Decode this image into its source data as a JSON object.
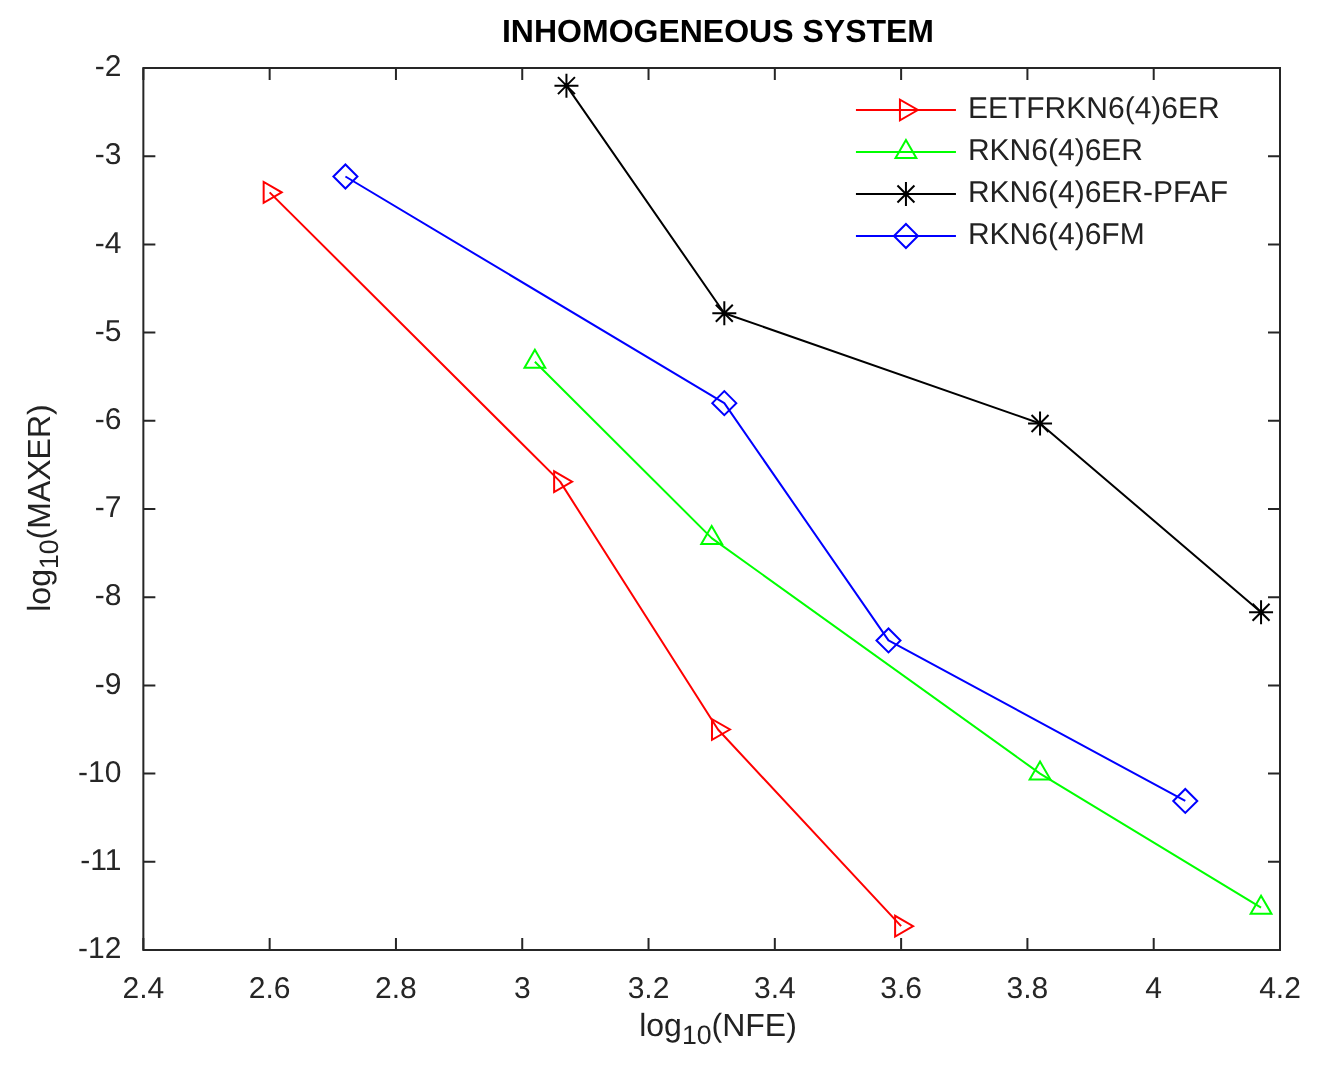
{
  "chart_data": {
    "type": "line",
    "title": "INHOMOGENEOUS SYSTEM",
    "xlabel": "log$_{10}$(NFE)",
    "ylabel": "log$_{10}$(MAXER)",
    "xlim": [
      2.4,
      4.2
    ],
    "xticks": [
      2.4,
      2.6,
      2.8,
      3,
      3.2,
      3.4,
      3.6,
      3.8,
      4,
      4.2
    ],
    "ylim": [
      -12,
      -2
    ],
    "yticks": [
      -12,
      -11,
      -10,
      -9,
      -8,
      -7,
      -6,
      -5,
      -4,
      -3,
      -2
    ],
    "grid": false,
    "legend": "top right",
    "line_style": "solid",
    "series": [
      {
        "name": "EETFRKN6(4)6ER",
        "color": "#ff0000",
        "marker": "triangle-right",
        "x": [
          2.6,
          3.06,
          3.31,
          3.6
        ],
        "values": [
          -3.41,
          -6.69,
          -9.5,
          -11.73
        ]
      },
      {
        "name": "RKN6(4)6ER",
        "color": "#00ff00",
        "marker": "triangle",
        "x": [
          3.02,
          3.3,
          3.82,
          4.17
        ],
        "values": [
          -5.33,
          -7.33,
          -10.0,
          -11.52
        ]
      },
      {
        "name": "RKN6(4)6ER-PFAF",
        "color": "#000000",
        "marker": "cross",
        "x": [
          3.07,
          3.32,
          3.82,
          4.17
        ],
        "values": [
          -2.2,
          -4.78,
          -6.03,
          -8.17
        ]
      },
      {
        "name": "RKN6(4)6FM",
        "color": "#0000ff",
        "marker": "diamond",
        "x": [
          2.72,
          3.32,
          3.58,
          4.05
        ],
        "values": [
          -3.23,
          -5.8,
          -8.49,
          -10.31
        ]
      }
    ]
  }
}
